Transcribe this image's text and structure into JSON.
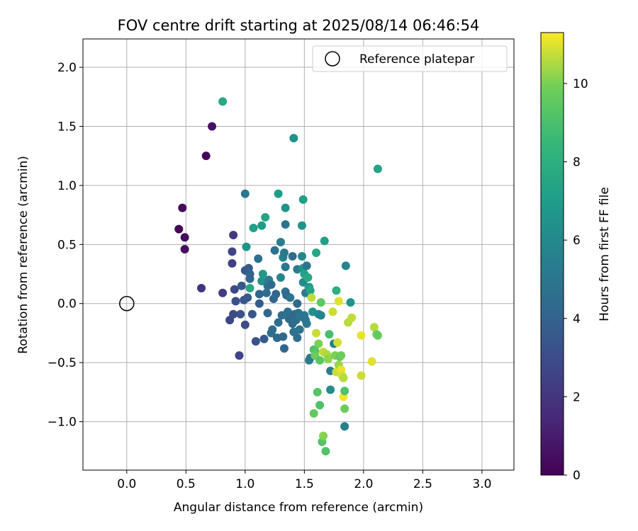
{
  "chart_data": {
    "type": "scatter",
    "title": "FOV centre drift starting at 2025/08/14 06:46:54",
    "xlabel": "Angular distance from reference (arcmin)",
    "ylabel": "Rotation from reference (arcmin)",
    "xlim": [
      -0.37,
      3.27
    ],
    "ylim": [
      -1.41,
      2.24
    ],
    "xticks": [
      0.0,
      0.5,
      1.0,
      1.5,
      2.0,
      2.5,
      3.0
    ],
    "xtick_labels": [
      "0.0",
      "0.5",
      "1.0",
      "1.5",
      "2.0",
      "2.5",
      "3.0"
    ],
    "yticks": [
      -1.0,
      -0.5,
      0.0,
      0.5,
      1.0,
      1.5,
      2.0
    ],
    "ytick_labels": [
      "−1.0",
      "−0.5",
      "0.0",
      "0.5",
      "1.0",
      "1.5",
      "2.0"
    ],
    "grid": true,
    "legend": {
      "position": "top-right",
      "entries": [
        "Reference platepar"
      ]
    },
    "reference_point": {
      "label": "Reference platepar",
      "x": 0.0,
      "y": 0.0
    },
    "colorbar": {
      "label": "Hours from first FF file",
      "colormap": "viridis",
      "range": [
        0,
        11.3
      ],
      "ticks": [
        0,
        2,
        4,
        6,
        8,
        10
      ],
      "tick_labels": [
        "0",
        "2",
        "4",
        "6",
        "8",
        "10"
      ]
    },
    "points": [
      {
        "x": 0.44,
        "y": 0.63,
        "h": 0.1
      },
      {
        "x": 0.47,
        "y": 0.81,
        "h": 0.3
      },
      {
        "x": 0.49,
        "y": 0.56,
        "h": 0.4
      },
      {
        "x": 0.49,
        "y": 0.46,
        "h": 0.5
      },
      {
        "x": 0.67,
        "y": 1.25,
        "h": 0.2
      },
      {
        "x": 0.72,
        "y": 1.5,
        "h": 0.6
      },
      {
        "x": 0.63,
        "y": 0.13,
        "h": 1.9
      },
      {
        "x": 0.81,
        "y": 0.09,
        "h": 2.3
      },
      {
        "x": 0.89,
        "y": 0.34,
        "h": 2.5
      },
      {
        "x": 0.89,
        "y": 0.44,
        "h": 2.6
      },
      {
        "x": 0.9,
        "y": 0.58,
        "h": 2.2
      },
      {
        "x": 0.87,
        "y": -0.14,
        "h": 2.7
      },
      {
        "x": 0.9,
        "y": -0.09,
        "h": 2.9
      },
      {
        "x": 0.91,
        "y": 0.12,
        "h": 2.8
      },
      {
        "x": 0.92,
        "y": 0.02,
        "h": 3.1
      },
      {
        "x": 0.95,
        "y": -0.44,
        "h": 2.6
      },
      {
        "x": 0.96,
        "y": -0.09,
        "h": 3.2
      },
      {
        "x": 0.97,
        "y": 0.15,
        "h": 3.6
      },
      {
        "x": 0.99,
        "y": 0.03,
        "h": 3.4
      },
      {
        "x": 1.0,
        "y": -0.18,
        "h": 2.9
      },
      {
        "x": 1.0,
        "y": 0.28,
        "h": 3.5
      },
      {
        "x": 1.02,
        "y": 0.05,
        "h": 3.6
      },
      {
        "x": 1.03,
        "y": 0.3,
        "h": 3.8
      },
      {
        "x": 1.04,
        "y": 0.25,
        "h": 4.0
      },
      {
        "x": 1.04,
        "y": 0.21,
        "h": 4.2
      },
      {
        "x": 1.0,
        "y": 0.93,
        "h": 5.0
      },
      {
        "x": 1.01,
        "y": 0.48,
        "h": 6.5
      },
      {
        "x": 1.04,
        "y": 0.13,
        "h": 7.5
      },
      {
        "x": 1.06,
        "y": -0.09,
        "h": 3.4
      },
      {
        "x": 1.07,
        "y": 0.64,
        "h": 7.2
      },
      {
        "x": 1.09,
        "y": -0.32,
        "h": 3.2
      },
      {
        "x": 1.11,
        "y": 0.38,
        "h": 4.6
      },
      {
        "x": 1.12,
        "y": 0.08,
        "h": 4.1
      },
      {
        "x": 1.12,
        "y": 0.0,
        "h": 3.7
      },
      {
        "x": 1.14,
        "y": 0.66,
        "h": 7.0
      },
      {
        "x": 1.14,
        "y": 0.19,
        "h": 6.4
      },
      {
        "x": 1.15,
        "y": 0.25,
        "h": 6.7
      },
      {
        "x": 1.16,
        "y": -0.3,
        "h": 3.6
      },
      {
        "x": 1.17,
        "y": 0.73,
        "h": 7.4
      },
      {
        "x": 1.18,
        "y": 0.09,
        "h": 4.4
      },
      {
        "x": 1.19,
        "y": -0.08,
        "h": 4.3
      },
      {
        "x": 1.19,
        "y": 0.15,
        "h": 4.8
      },
      {
        "x": 1.2,
        "y": 0.2,
        "h": 5.4
      },
      {
        "x": 1.22,
        "y": -0.25,
        "h": 4.6
      },
      {
        "x": 1.22,
        "y": 0.16,
        "h": 4.4
      },
      {
        "x": 1.23,
        "y": -0.22,
        "h": 4.5
      },
      {
        "x": 1.24,
        "y": 0.04,
        "h": 4.1
      },
      {
        "x": 1.25,
        "y": 0.45,
        "h": 4.7
      },
      {
        "x": 1.26,
        "y": 0.08,
        "h": 4.2
      },
      {
        "x": 1.27,
        "y": -0.29,
        "h": 4.4
      },
      {
        "x": 1.28,
        "y": -0.16,
        "h": 4.6
      },
      {
        "x": 1.28,
        "y": 0.93,
        "h": 7.0
      },
      {
        "x": 1.3,
        "y": 0.52,
        "h": 5.4
      },
      {
        "x": 1.3,
        "y": 0.22,
        "h": 5.9
      },
      {
        "x": 1.31,
        "y": -0.1,
        "h": 4.5
      },
      {
        "x": 1.32,
        "y": -0.28,
        "h": 4.3
      },
      {
        "x": 1.32,
        "y": 0.39,
        "h": 5.7
      },
      {
        "x": 1.33,
        "y": 0.43,
        "h": 5.2
      },
      {
        "x": 1.33,
        "y": -0.38,
        "h": 4.2
      },
      {
        "x": 1.34,
        "y": 0.31,
        "h": 5.0
      },
      {
        "x": 1.34,
        "y": 0.67,
        "h": 4.9
      },
      {
        "x": 1.34,
        "y": 0.1,
        "h": 4.7
      },
      {
        "x": 1.34,
        "y": 0.81,
        "h": 6.5
      },
      {
        "x": 1.35,
        "y": 0.07,
        "h": 4.3
      },
      {
        "x": 1.36,
        "y": -0.07,
        "h": 4.6
      },
      {
        "x": 1.37,
        "y": -0.13,
        "h": 4.4
      },
      {
        "x": 1.38,
        "y": 0.05,
        "h": 4.9
      },
      {
        "x": 1.4,
        "y": 0.4,
        "h": 4.5
      },
      {
        "x": 1.4,
        "y": -0.17,
        "h": 4.4
      },
      {
        "x": 1.41,
        "y": -0.24,
        "h": 4.8
      },
      {
        "x": 1.41,
        "y": 1.4,
        "h": 6.5
      },
      {
        "x": 1.42,
        "y": -0.09,
        "h": 4.2
      },
      {
        "x": 1.43,
        "y": -0.14,
        "h": 4.6
      },
      {
        "x": 1.44,
        "y": 0.0,
        "h": 4.3
      },
      {
        "x": 1.44,
        "y": -0.29,
        "h": 4.6
      },
      {
        "x": 1.44,
        "y": 0.29,
        "h": 5.3
      },
      {
        "x": 1.45,
        "y": -0.08,
        "h": 4.7
      },
      {
        "x": 1.46,
        "y": -0.22,
        "h": 4.8
      },
      {
        "x": 1.47,
        "y": -0.11,
        "h": 4.9
      },
      {
        "x": 1.48,
        "y": 0.4,
        "h": 5.8
      },
      {
        "x": 1.48,
        "y": 0.66,
        "h": 6.5
      },
      {
        "x": 1.49,
        "y": 0.88,
        "h": 7.2
      },
      {
        "x": 1.49,
        "y": 0.3,
        "h": 6.6
      },
      {
        "x": 1.49,
        "y": 0.18,
        "h": 6.1
      },
      {
        "x": 1.5,
        "y": -0.1,
        "h": 5.0
      },
      {
        "x": 1.5,
        "y": 0.25,
        "h": 7.1
      },
      {
        "x": 1.51,
        "y": 0.09,
        "h": 5.3
      },
      {
        "x": 1.51,
        "y": -0.14,
        "h": 4.8
      },
      {
        "x": 1.52,
        "y": 0.32,
        "h": 5.0
      },
      {
        "x": 1.52,
        "y": -0.17,
        "h": 5.2
      },
      {
        "x": 1.53,
        "y": 0.22,
        "h": 7.6
      },
      {
        "x": 1.54,
        "y": 0.14,
        "h": 6.8
      },
      {
        "x": 1.54,
        "y": -0.48,
        "h": 5.5
      },
      {
        "x": 1.55,
        "y": -0.46,
        "h": 5.2
      },
      {
        "x": 1.55,
        "y": 0.11,
        "h": 7.4
      },
      {
        "x": 1.56,
        "y": 0.05,
        "h": 10.7
      },
      {
        "x": 1.57,
        "y": -0.07,
        "h": 6.4
      },
      {
        "x": 1.58,
        "y": -0.39,
        "h": 8.9
      },
      {
        "x": 1.58,
        "y": -0.93,
        "h": 9.6
      },
      {
        "x": 1.59,
        "y": -0.4,
        "h": 9.3
      },
      {
        "x": 1.59,
        "y": -0.44,
        "h": 9.8
      },
      {
        "x": 1.6,
        "y": 0.43,
        "h": 7.5
      },
      {
        "x": 1.6,
        "y": -0.25,
        "h": 10.8
      },
      {
        "x": 1.61,
        "y": -0.75,
        "h": 9.3
      },
      {
        "x": 1.62,
        "y": -0.34,
        "h": 10.0
      },
      {
        "x": 1.62,
        "y": -0.09,
        "h": 6.0
      },
      {
        "x": 1.63,
        "y": -0.86,
        "h": 9.1
      },
      {
        "x": 1.63,
        "y": -0.48,
        "h": 9.4
      },
      {
        "x": 1.64,
        "y": -0.1,
        "h": 5.7
      },
      {
        "x": 1.64,
        "y": 0.01,
        "h": 9.5
      },
      {
        "x": 1.65,
        "y": -1.17,
        "h": 9.2
      },
      {
        "x": 1.66,
        "y": -0.41,
        "h": 10.7
      },
      {
        "x": 1.66,
        "y": -1.12,
        "h": 10.1
      },
      {
        "x": 1.67,
        "y": 0.53,
        "h": 7.2
      },
      {
        "x": 1.68,
        "y": -1.25,
        "h": 9.2
      },
      {
        "x": 1.69,
        "y": -0.43,
        "h": 10.5
      },
      {
        "x": 1.7,
        "y": -0.47,
        "h": 10.2
      },
      {
        "x": 1.71,
        "y": -0.26,
        "h": 8.9
      },
      {
        "x": 1.72,
        "y": -0.57,
        "h": 5.3
      },
      {
        "x": 1.72,
        "y": -0.73,
        "h": 6.2
      },
      {
        "x": 1.74,
        "y": -0.07,
        "h": 10.8
      },
      {
        "x": 1.75,
        "y": -0.34,
        "h": 5.5
      },
      {
        "x": 1.76,
        "y": -0.44,
        "h": 10.0
      },
      {
        "x": 1.77,
        "y": -0.58,
        "h": 10.8
      },
      {
        "x": 1.77,
        "y": 0.11,
        "h": 8.0
      },
      {
        "x": 1.78,
        "y": -0.33,
        "h": 10.9
      },
      {
        "x": 1.79,
        "y": 0.02,
        "h": 11.0
      },
      {
        "x": 1.79,
        "y": -0.52,
        "h": 10.3
      },
      {
        "x": 1.8,
        "y": -0.45,
        "h": 9.5
      },
      {
        "x": 1.81,
        "y": -0.44,
        "h": 9.8
      },
      {
        "x": 1.81,
        "y": -0.56,
        "h": 11.1
      },
      {
        "x": 1.82,
        "y": -0.61,
        "h": 10.9
      },
      {
        "x": 1.83,
        "y": -0.79,
        "h": 11.2
      },
      {
        "x": 1.83,
        "y": -0.63,
        "h": 10.6
      },
      {
        "x": 1.84,
        "y": -0.89,
        "h": 9.8
      },
      {
        "x": 1.84,
        "y": -0.74,
        "h": 9.1
      },
      {
        "x": 1.84,
        "y": -1.04,
        "h": 5.5
      },
      {
        "x": 1.85,
        "y": 0.32,
        "h": 5.8
      },
      {
        "x": 1.87,
        "y": -0.16,
        "h": 10.6
      },
      {
        "x": 1.89,
        "y": 0.01,
        "h": 6.6
      },
      {
        "x": 1.9,
        "y": -0.12,
        "h": 10.7
      },
      {
        "x": 1.98,
        "y": -0.27,
        "h": 11.1
      },
      {
        "x": 1.98,
        "y": -0.61,
        "h": 10.8
      },
      {
        "x": 2.07,
        "y": -0.49,
        "h": 11.0
      },
      {
        "x": 2.09,
        "y": -0.2,
        "h": 10.6
      },
      {
        "x": 2.11,
        "y": -0.26,
        "h": 9.9
      },
      {
        "x": 2.12,
        "y": -0.27,
        "h": 9.6
      },
      {
        "x": 2.12,
        "y": 1.14,
        "h": 7.4
      },
      {
        "x": 0.81,
        "y": 1.71,
        "h": 7.6
      }
    ]
  }
}
